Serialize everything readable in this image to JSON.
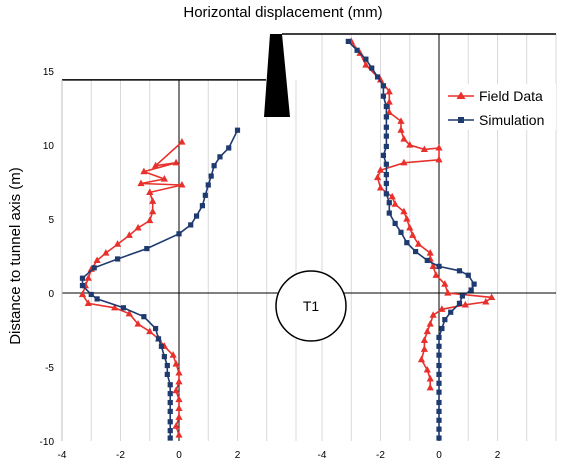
{
  "chart_data": {
    "type": "line",
    "title": "Horizontal displacement (mm)",
    "ylabel": "Distance to tunnel axis (m)",
    "ylim": [
      -10,
      17.5
    ],
    "yticks": [
      "15",
      "10",
      "5",
      "0",
      "-5",
      "-10"
    ],
    "ytick_values": [
      15,
      10,
      5,
      0,
      -5,
      -10
    ],
    "grid": true,
    "legend": "top-right",
    "tunnel_label": "T1",
    "colors": {
      "field": "#e8312c",
      "simulation": "#1f3a6e",
      "wall": "#000000",
      "grid": "#d9d9d9"
    },
    "panels": [
      {
        "name": "left-inclinometer",
        "xlim": [
          -4,
          4
        ],
        "xticks": [
          "-4",
          "-2",
          "0",
          "2"
        ],
        "xtick_values": [
          -4,
          -2,
          0,
          2
        ],
        "series": [
          {
            "key": "field",
            "values": [
              [
                0.1,
                10.2
              ],
              [
                -0.8,
                8.6
              ],
              [
                -0.1,
                8.8
              ],
              [
                -1.2,
                8.2
              ],
              [
                -0.5,
                7.7
              ],
              [
                -1.3,
                7.4
              ],
              [
                0.1,
                7.3
              ],
              [
                -1.0,
                6.8
              ],
              [
                -0.9,
                6.2
              ],
              [
                -0.9,
                5.5
              ],
              [
                -1.0,
                4.9
              ],
              [
                -1.4,
                4.4
              ],
              [
                -1.7,
                3.9
              ],
              [
                -2.1,
                3.3
              ],
              [
                -2.5,
                2.7
              ],
              [
                -2.8,
                2.2
              ],
              [
                -3.0,
                1.6
              ],
              [
                -3.1,
                1.0
              ],
              [
                -3.2,
                0.5
              ],
              [
                -3.3,
                -0.1
              ],
              [
                -3.1,
                -0.7
              ],
              [
                -2.2,
                -1.0
              ],
              [
                -1.7,
                -1.4
              ],
              [
                -1.4,
                -2.1
              ],
              [
                -1.0,
                -2.6
              ],
              [
                -0.7,
                -3.1
              ],
              [
                -0.5,
                -3.6
              ],
              [
                -0.2,
                -4.2
              ],
              [
                -0.1,
                -4.8
              ],
              [
                0.0,
                -5.4
              ],
              [
                0.0,
                -6.0
              ],
              [
                -0.1,
                -6.6
              ],
              [
                0.0,
                -7.2
              ],
              [
                0.0,
                -7.8
              ],
              [
                0.0,
                -8.4
              ],
              [
                -0.1,
                -9.0
              ],
              [
                0.0,
                -9.6
              ]
            ]
          },
          {
            "key": "simulation",
            "values": [
              [
                2.0,
                11.0
              ],
              [
                1.7,
                9.8
              ],
              [
                1.4,
                9.2
              ],
              [
                1.2,
                8.6
              ],
              [
                1.1,
                7.9
              ],
              [
                1.0,
                7.3
              ],
              [
                0.9,
                6.6
              ],
              [
                0.8,
                5.9
              ],
              [
                0.6,
                5.2
              ],
              [
                0.4,
                4.6
              ],
              [
                0.0,
                4.0
              ],
              [
                -1.1,
                3.0
              ],
              [
                -2.1,
                2.3
              ],
              [
                -2.9,
                1.7
              ],
              [
                -3.3,
                1.0
              ],
              [
                -3.3,
                0.5
              ],
              [
                -3.0,
                -0.1
              ],
              [
                -2.8,
                -0.4
              ],
              [
                -1.9,
                -1.0
              ],
              [
                -1.2,
                -1.6
              ],
              [
                -0.8,
                -2.4
              ],
              [
                -0.7,
                -3.1
              ],
              [
                -0.6,
                -3.6
              ],
              [
                -0.5,
                -4.3
              ],
              [
                -0.4,
                -4.9
              ],
              [
                -0.4,
                -5.5
              ],
              [
                -0.3,
                -6.2
              ],
              [
                -0.3,
                -6.8
              ],
              [
                -0.3,
                -7.4
              ],
              [
                -0.3,
                -8.0
              ],
              [
                -0.3,
                -8.7
              ],
              [
                -0.3,
                -9.3
              ],
              [
                -0.3,
                -9.8
              ]
            ]
          }
        ]
      },
      {
        "name": "right-inclinometer",
        "xlim": [
          -4,
          4
        ],
        "xticks": [
          "-4",
          "-2",
          "0",
          "2"
        ],
        "xtick_values": [
          -4,
          -2,
          0,
          2
        ],
        "series": [
          {
            "key": "field",
            "values": [
              [
                -3.0,
                17.0
              ],
              [
                -2.7,
                16.2
              ],
              [
                -2.5,
                15.4
              ],
              [
                -2.0,
                14.4
              ],
              [
                -1.7,
                13.6
              ],
              [
                -1.7,
                12.9
              ],
              [
                -1.7,
                12.2
              ],
              [
                -1.3,
                11.6
              ],
              [
                -1.3,
                11.0
              ],
              [
                -1.2,
                10.4
              ],
              [
                -1.0,
                10.0
              ],
              [
                -0.5,
                9.7
              ],
              [
                0.0,
                9.8
              ],
              [
                0.0,
                9.0
              ],
              [
                -1.2,
                8.8
              ],
              [
                -2.0,
                8.3
              ],
              [
                -2.1,
                7.8
              ],
              [
                -2.0,
                7.1
              ],
              [
                -1.6,
                6.5
              ],
              [
                -1.5,
                6.0
              ],
              [
                -1.2,
                5.5
              ],
              [
                -1.1,
                5.0
              ],
              [
                -1.0,
                4.4
              ],
              [
                -0.9,
                3.9
              ],
              [
                -0.7,
                3.3
              ],
              [
                -0.3,
                2.7
              ],
              [
                -0.3,
                2.3
              ],
              [
                -0.2,
                1.8
              ],
              [
                -0.1,
                1.2
              ],
              [
                0.2,
                0.6
              ],
              [
                0.3,
                0.0
              ],
              [
                1.8,
                -0.3
              ],
              [
                1.6,
                -0.6
              ],
              [
                0.9,
                -0.8
              ],
              [
                0.1,
                -1.1
              ],
              [
                -0.2,
                -1.5
              ],
              [
                -0.3,
                -2.1
              ],
              [
                -0.4,
                -2.6
              ],
              [
                -0.5,
                -3.2
              ],
              [
                -0.5,
                -3.8
              ],
              [
                -0.6,
                -4.5
              ],
              [
                -0.4,
                -5.2
              ],
              [
                -0.3,
                -5.8
              ],
              [
                -0.3,
                -6.4
              ]
            ]
          },
          {
            "key": "simulation",
            "values": [
              [
                -3.1,
                17.0
              ],
              [
                -2.8,
                16.4
              ],
              [
                -2.5,
                15.8
              ],
              [
                -2.3,
                15.2
              ],
              [
                -2.1,
                14.6
              ],
              [
                -1.9,
                14.0
              ],
              [
                -1.9,
                13.3
              ],
              [
                -1.8,
                12.6
              ],
              [
                -1.8,
                11.9
              ],
              [
                -1.8,
                11.2
              ],
              [
                -1.8,
                10.6
              ],
              [
                -1.8,
                9.9
              ],
              [
                -1.9,
                9.3
              ],
              [
                -1.8,
                8.7
              ],
              [
                -1.8,
                8.0
              ],
              [
                -1.8,
                7.4
              ],
              [
                -1.8,
                6.7
              ],
              [
                -1.7,
                6.1
              ],
              [
                -1.7,
                5.4
              ],
              [
                -1.5,
                4.7
              ],
              [
                -1.3,
                4.1
              ],
              [
                -1.1,
                3.4
              ],
              [
                -0.8,
                2.8
              ],
              [
                -0.4,
                2.2
              ],
              [
                0.0,
                1.8
              ],
              [
                0.7,
                1.5
              ],
              [
                1.0,
                1.2
              ],
              [
                1.2,
                0.6
              ],
              [
                1.1,
                0.2
              ],
              [
                0.8,
                -0.2
              ],
              [
                0.7,
                -0.7
              ],
              [
                0.4,
                -1.3
              ],
              [
                0.2,
                -1.8
              ],
              [
                0.1,
                -2.4
              ],
              [
                0.0,
                -3.0
              ],
              [
                0.0,
                -3.6
              ],
              [
                0.0,
                -4.2
              ],
              [
                0.0,
                -4.9
              ],
              [
                0.0,
                -5.5
              ],
              [
                0.0,
                -6.1
              ],
              [
                0.0,
                -6.7
              ],
              [
                0.0,
                -7.4
              ],
              [
                0.0,
                -8.0
              ],
              [
                0.0,
                -8.6
              ],
              [
                0.0,
                -9.2
              ],
              [
                0.0,
                -9.8
              ]
            ]
          }
        ]
      }
    ],
    "legend_entries": [
      {
        "key": "field",
        "label": "Field Data"
      },
      {
        "key": "simulation",
        "label": "Simulation"
      }
    ]
  }
}
